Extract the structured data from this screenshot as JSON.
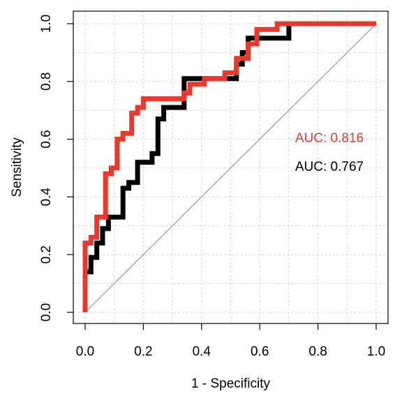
{
  "chart_data": {
    "type": "line",
    "title": "",
    "xlabel": "1 - Specificity",
    "ylabel": "Sensitivity",
    "xlim": [
      0,
      1
    ],
    "ylim": [
      0,
      1
    ],
    "xticks": [
      "0.0",
      "0.2",
      "0.4",
      "0.6",
      "0.8",
      "1.0"
    ],
    "yticks": [
      "0.0",
      "0.2",
      "0.4",
      "0.6",
      "0.8",
      "1.0"
    ],
    "grid": true,
    "reference_line": {
      "from": [
        0,
        0
      ],
      "to": [
        1,
        1
      ],
      "color": "#999999"
    },
    "series": [
      {
        "color": "#000000",
        "auc_label": "AUC: 0.767",
        "x": [
          0,
          0,
          0.02,
          0.02,
          0.04,
          0.04,
          0.06,
          0.06,
          0.08,
          0.08,
          0.1,
          0.1,
          0.13,
          0.13,
          0.15,
          0.15,
          0.18,
          0.18,
          0.23,
          0.23,
          0.25,
          0.25,
          0.27,
          0.27,
          0.34,
          0.34,
          0.45,
          0.45,
          0.52,
          0.52,
          0.54,
          0.54,
          0.56,
          0.56,
          0.6,
          0.6,
          0.7,
          0.7,
          1.0
        ],
        "y": [
          0,
          0.14,
          0.14,
          0.19,
          0.19,
          0.24,
          0.24,
          0.29,
          0.29,
          0.33,
          0.33,
          0.33,
          0.33,
          0.43,
          0.43,
          0.45,
          0.45,
          0.52,
          0.52,
          0.55,
          0.55,
          0.67,
          0.67,
          0.71,
          0.71,
          0.81,
          0.81,
          0.81,
          0.81,
          0.86,
          0.86,
          0.9,
          0.9,
          0.95,
          0.95,
          0.95,
          0.95,
          1.0,
          1.0
        ]
      },
      {
        "color": "#e8392b",
        "auc_label": "AUC: 0.816",
        "x": [
          0,
          0,
          0.02,
          0.02,
          0.04,
          0.04,
          0.07,
          0.07,
          0.09,
          0.09,
          0.11,
          0.11,
          0.13,
          0.13,
          0.16,
          0.16,
          0.18,
          0.18,
          0.2,
          0.2,
          0.3,
          0.3,
          0.34,
          0.34,
          0.36,
          0.36,
          0.41,
          0.41,
          0.48,
          0.48,
          0.52,
          0.52,
          0.56,
          0.56,
          0.59,
          0.59,
          0.66,
          0.66,
          1.0
        ],
        "y": [
          0,
          0.24,
          0.24,
          0.26,
          0.26,
          0.33,
          0.33,
          0.48,
          0.48,
          0.5,
          0.5,
          0.6,
          0.6,
          0.62,
          0.62,
          0.69,
          0.69,
          0.71,
          0.71,
          0.74,
          0.74,
          0.74,
          0.74,
          0.76,
          0.76,
          0.79,
          0.79,
          0.81,
          0.81,
          0.83,
          0.83,
          0.88,
          0.88,
          0.93,
          0.93,
          0.98,
          0.98,
          1.0,
          1.0
        ]
      }
    ]
  }
}
